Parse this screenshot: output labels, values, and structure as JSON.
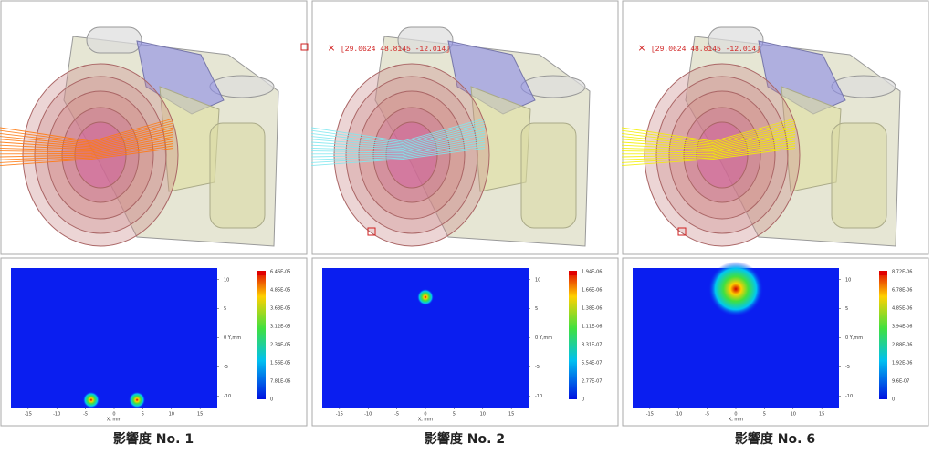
{
  "xticks": [
    -15,
    -10,
    -5,
    0,
    5,
    10,
    15
  ],
  "yticks": [
    10,
    5,
    {
      "value": 0,
      "label": "0 Y,mm"
    },
    -5,
    -10
  ],
  "x_label": "X, mm",
  "xlim": [
    -18,
    18
  ],
  "ylim": [
    -12,
    12
  ],
  "panels": [
    {
      "caption": "影響度 No. 1",
      "ray_color": "#ff7a10",
      "colorbar_labels": [
        "6.46E-05",
        "4.85E-05",
        "3.63E-05",
        "3.12E-05",
        "2.34E-05",
        "1.56E-05",
        "7.81E-06",
        "0"
      ],
      "spots": [
        {
          "x": -4,
          "y": -10.7,
          "radius": 0.9
        },
        {
          "x": 4,
          "y": -10.7,
          "radius": 0.9
        }
      ]
    },
    {
      "caption": "影響度 No. 2",
      "ray_color": "#7fe8f0",
      "coordinate": "[29.0624 48.8145 -12.014]",
      "colorbar_labels": [
        "1.94E-06",
        "1.66E-06",
        "1.38E-06",
        "1.11E-06",
        "8.31E-07",
        "5.54E-07",
        "2.77E-07",
        "0"
      ],
      "spots": [
        {
          "x": 0,
          "y": 7,
          "radius": 0.9
        }
      ]
    },
    {
      "caption": "影響度 No. 6",
      "ray_color": "#f4f000",
      "coordinate": "[29.0624 48.8145 -12.014]",
      "colorbar_labels": [
        "8.72E-06",
        "6.78E-06",
        "4.85E-06",
        "3.94E-06",
        "2.88E-06",
        "1.92E-06",
        "9.6E-07",
        "0"
      ],
      "spots": [
        {
          "x": 0,
          "y": 8.4,
          "radius": 3
        }
      ]
    }
  ]
}
